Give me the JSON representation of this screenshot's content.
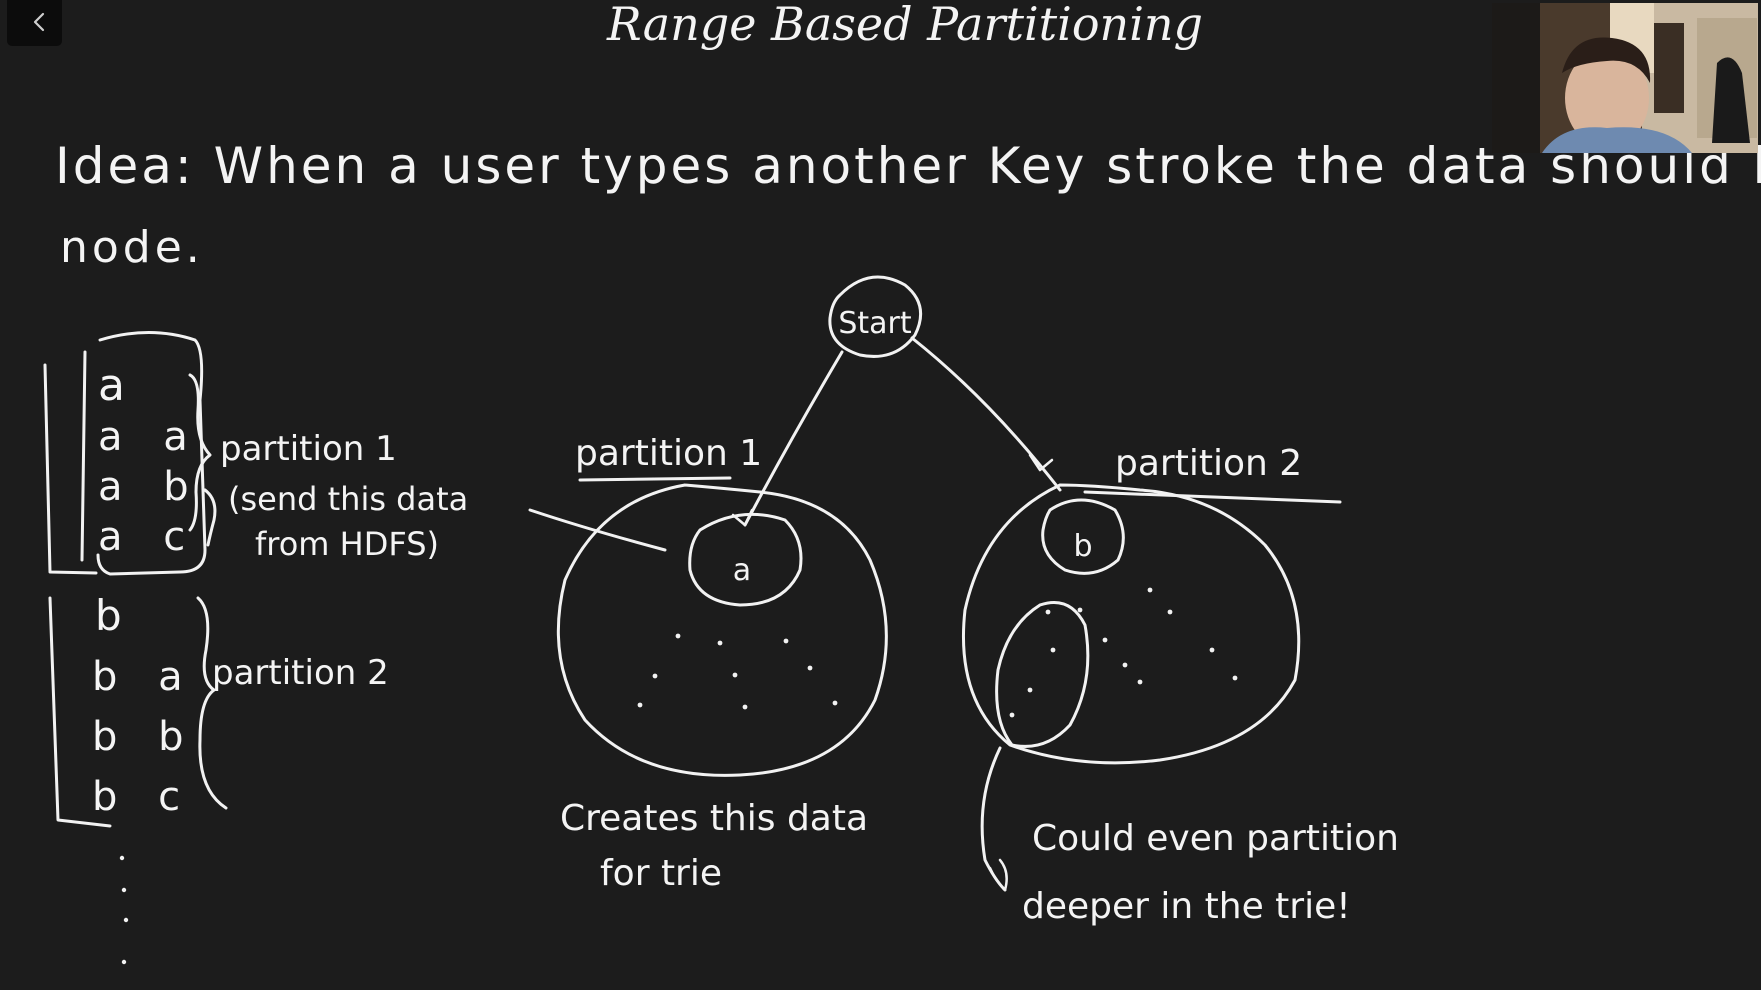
{
  "toolbar": {
    "back_icon": "chevron-left-icon"
  },
  "slide": {
    "title": "Range Based Partitioning",
    "idea_line1": "Idea: When a user types another Key stroke the data should be on the same",
    "idea_line2": "node."
  },
  "key_list": {
    "group1": [
      "a",
      "a a",
      "a b",
      "a c"
    ],
    "group2": [
      "b",
      "b a",
      "b b",
      "b c"
    ],
    "group1_label": "partition 1",
    "group1_note_line1": "(send this data",
    "group1_note_line2": "from HDFS)",
    "group2_label": "partition 2"
  },
  "trie": {
    "root_label": "Start",
    "left_node_label": "a",
    "right_node_label": "b",
    "left_partition_label": "partition 1",
    "right_partition_label": "partition 2",
    "left_caption_line1": "Creates this data",
    "left_caption_line2": "for trie",
    "right_caption_line1": "Could even partition",
    "right_caption_line2": "deeper in the trie!"
  },
  "webcam": {
    "icon": "presenter-video-feed"
  },
  "colors": {
    "background": "#1c1c1c",
    "ink": "#f2f2f2"
  }
}
